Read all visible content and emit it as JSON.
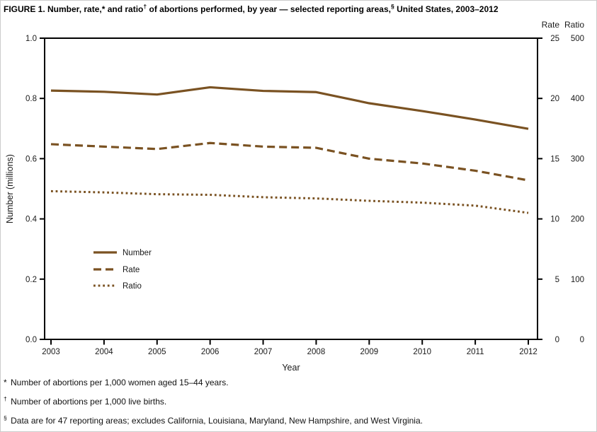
{
  "figure": {
    "title_parts": [
      {
        "text": "FIGURE 1. Number, rate,* and ratio",
        "sup": false
      },
      {
        "text": "†",
        "sup": true
      },
      {
        "text": " of abortions performed, by year — selected reporting areas,",
        "sup": false
      },
      {
        "text": "§",
        "sup": true
      },
      {
        "text": " United States, 2003–2012",
        "sup": false
      }
    ],
    "footnotes": [
      {
        "symbol": "*",
        "sup": false,
        "text": "Number of abortions per 1,000 women aged 15–44 years."
      },
      {
        "symbol": "†",
        "sup": true,
        "text": "Number of abortions per 1,000 live births."
      },
      {
        "symbol": "§",
        "sup": true,
        "text": "Data are for 47 reporting areas; excludes California, Louisiana, Maryland, New Hampshire, and West Virginia."
      }
    ]
  },
  "chart_data": {
    "type": "line",
    "title": "FIGURE 1. Number, rate, and ratio of abortions performed, by year — selected reporting areas, United States, 2003–2012",
    "x": [
      2003,
      2004,
      2005,
      2006,
      2007,
      2008,
      2009,
      2010,
      2011,
      2012
    ],
    "xlabel": "Year",
    "axes": {
      "left": {
        "label": "Number (millions)",
        "ticks": [
          "0.0",
          "0.2",
          "0.4",
          "0.6",
          "0.8",
          "1.0"
        ],
        "range": [
          0,
          1.0
        ]
      },
      "right_rate": {
        "label": "Rate",
        "ticks": [
          "0",
          "5",
          "10",
          "15",
          "20",
          "25"
        ],
        "range": [
          0,
          25
        ]
      },
      "right_ratio": {
        "label": "Ratio",
        "ticks": [
          "0",
          "100",
          "200",
          "300",
          "400",
          "500"
        ],
        "range": [
          0,
          500
        ]
      }
    },
    "series": [
      {
        "name": "Number",
        "style": "solid",
        "axis": "left",
        "values": [
          0.826,
          0.822,
          0.813,
          0.837,
          0.825,
          0.821,
          0.784,
          0.758,
          0.73,
          0.699
        ]
      },
      {
        "name": "Rate",
        "style": "dashed",
        "axis": "right_rate",
        "values": [
          16.2,
          16.0,
          15.8,
          16.3,
          16.0,
          15.9,
          15.0,
          14.6,
          14.0,
          13.2
        ]
      },
      {
        "name": "Ratio",
        "style": "dotted",
        "axis": "right_ratio",
        "values": [
          246,
          244,
          241,
          240,
          236,
          234,
          230,
          227,
          222,
          210
        ]
      }
    ],
    "legend": {
      "entries": [
        "Number",
        "Rate",
        "Ratio"
      ],
      "position": "inside-lower-left"
    },
    "line_color": "#7a5222",
    "axis_color": "#000000",
    "grid": false
  }
}
